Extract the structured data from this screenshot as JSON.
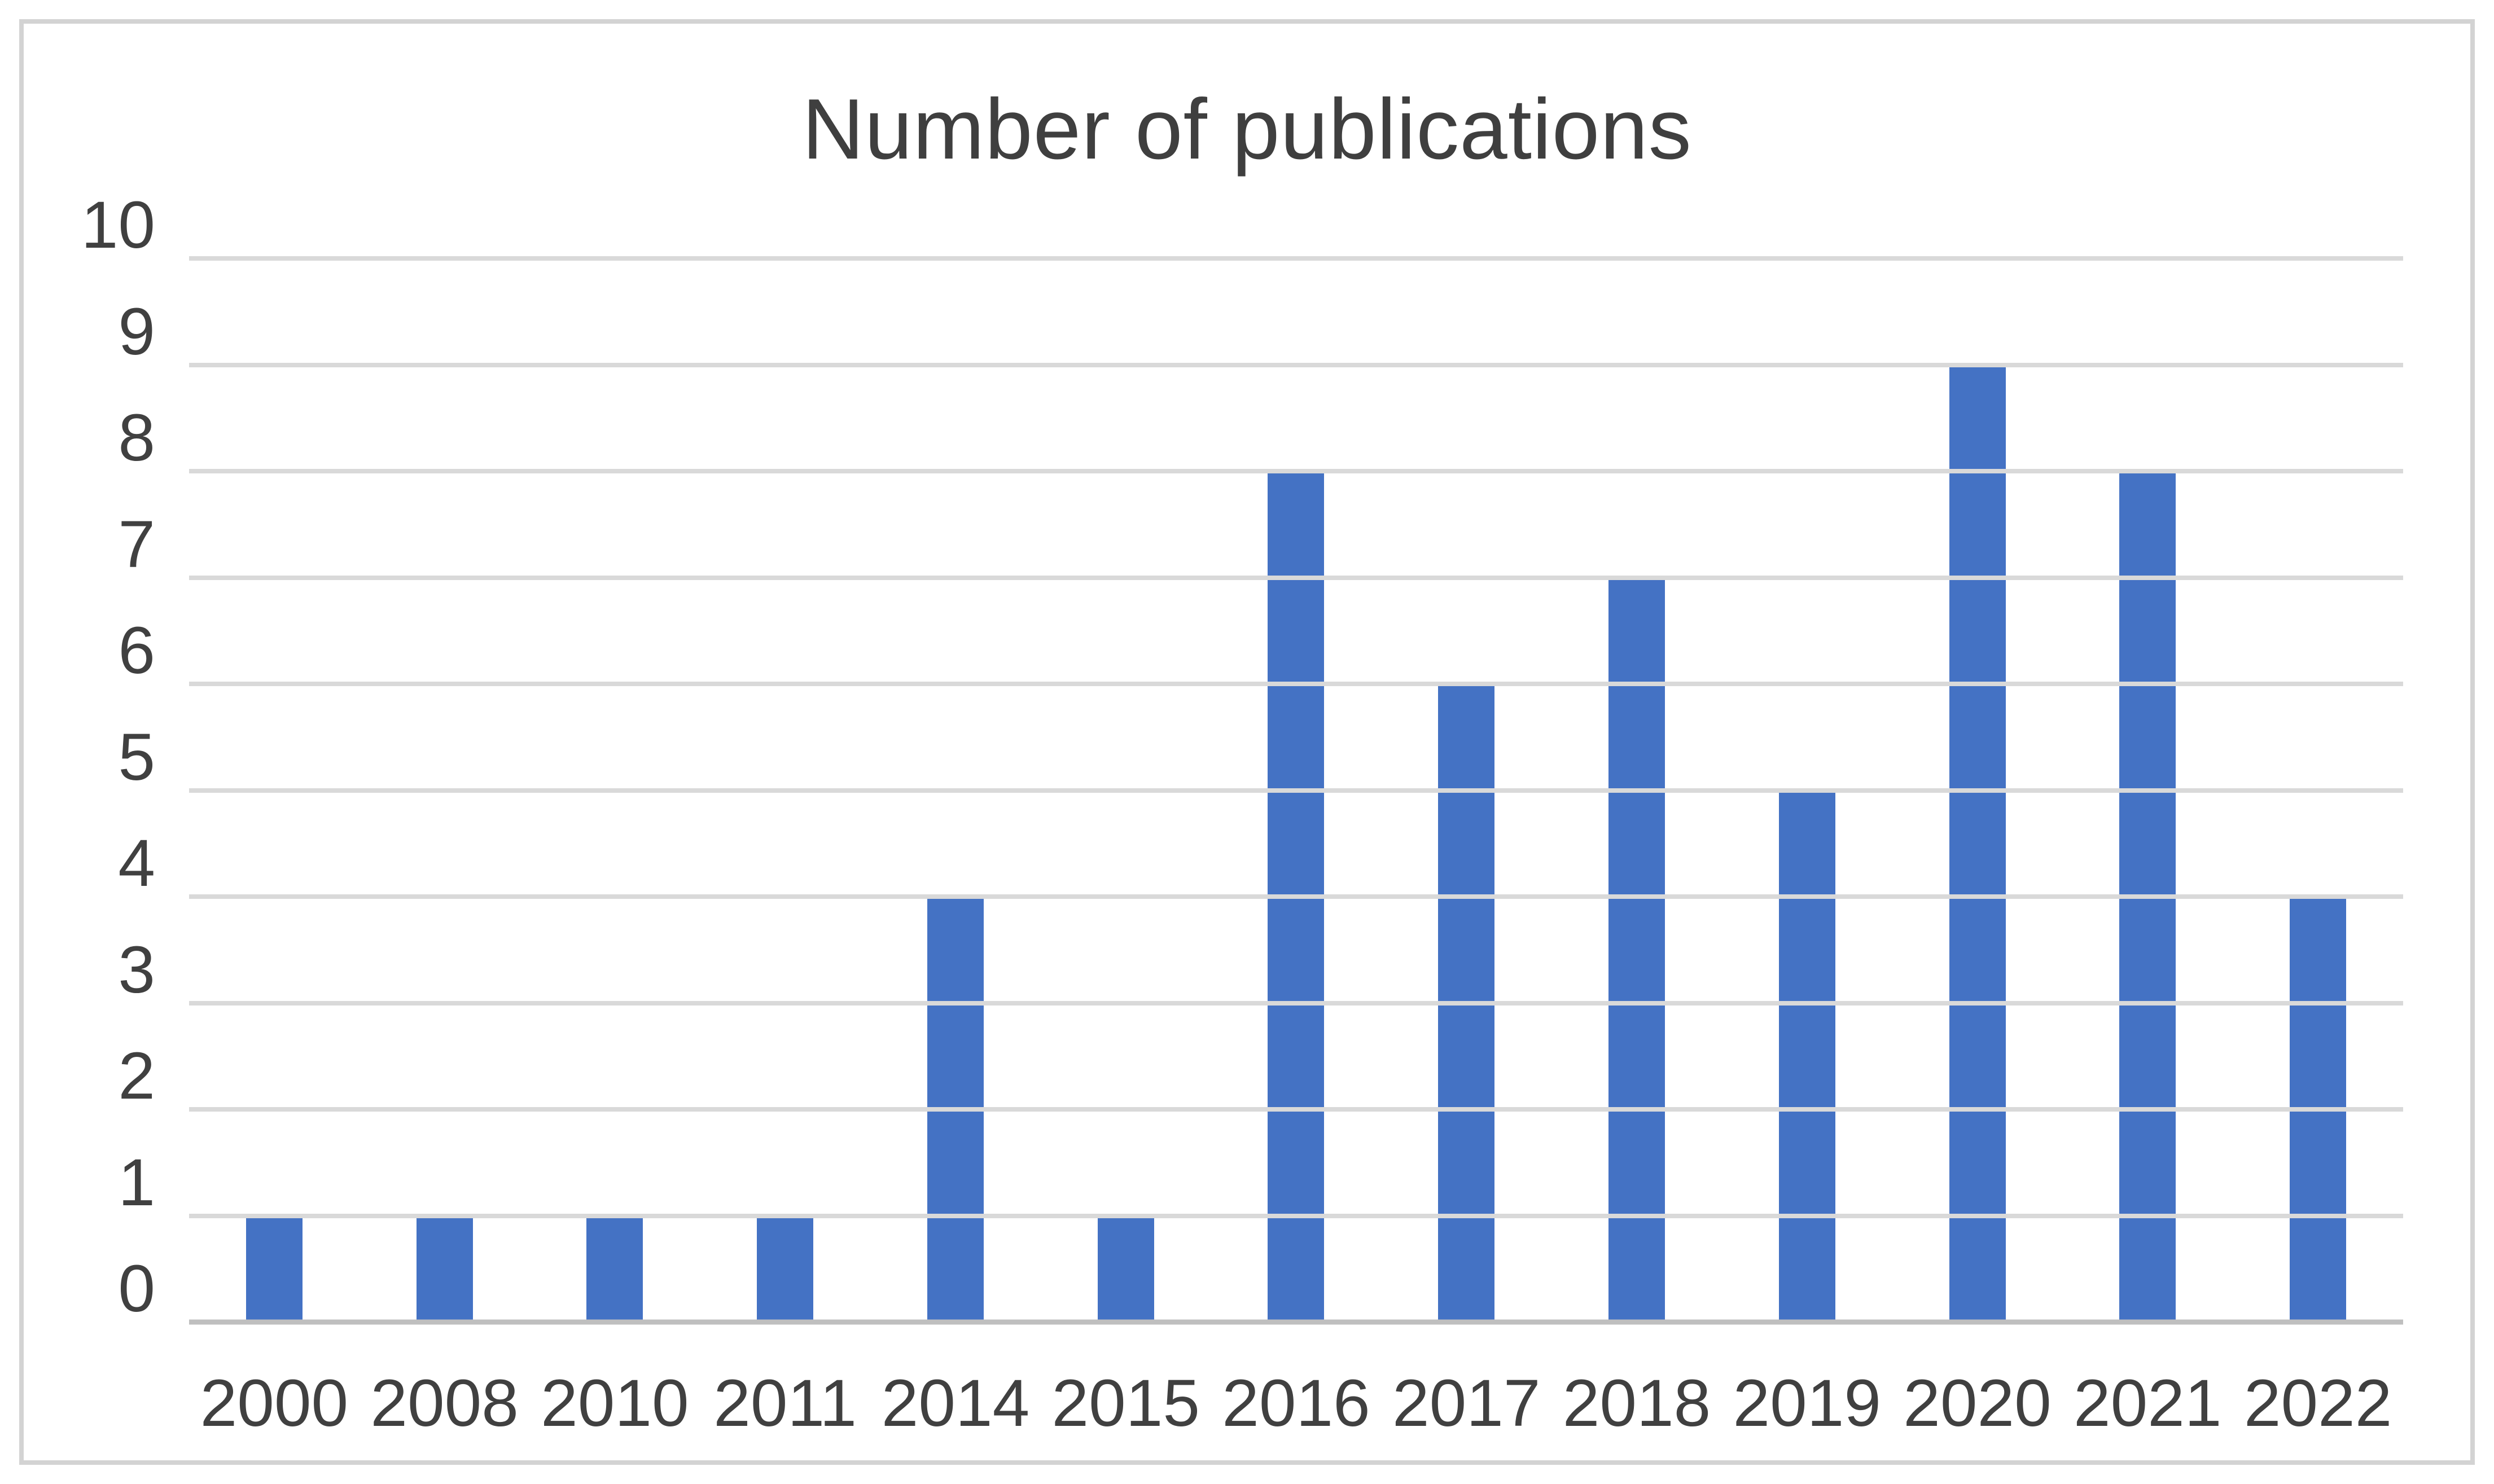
{
  "figure": {
    "border_color": "#d3d3d3",
    "background_color": "#ffffff"
  },
  "chart_data": {
    "type": "bar",
    "title": "Number of publications",
    "categories": [
      "2000",
      "2008",
      "2010",
      "2011",
      "2014",
      "2015",
      "2016",
      "2017",
      "2018",
      "2019",
      "2020",
      "2021",
      "2022"
    ],
    "values": [
      1,
      1,
      1,
      1,
      4,
      1,
      8,
      6,
      7,
      5,
      9,
      8,
      4
    ],
    "xlabel": "",
    "ylabel": "",
    "ylim": [
      0,
      10
    ],
    "yticks": [
      0,
      1,
      2,
      3,
      4,
      5,
      6,
      7,
      8,
      9,
      10
    ],
    "grid": true,
    "legend": false,
    "bar_color": "#4472C4",
    "gridline_color": "#D9D9D9",
    "axis_line_color": "#BFBFBF",
    "tick_label_color": "#404040",
    "title_color": "#3F3F3F"
  }
}
